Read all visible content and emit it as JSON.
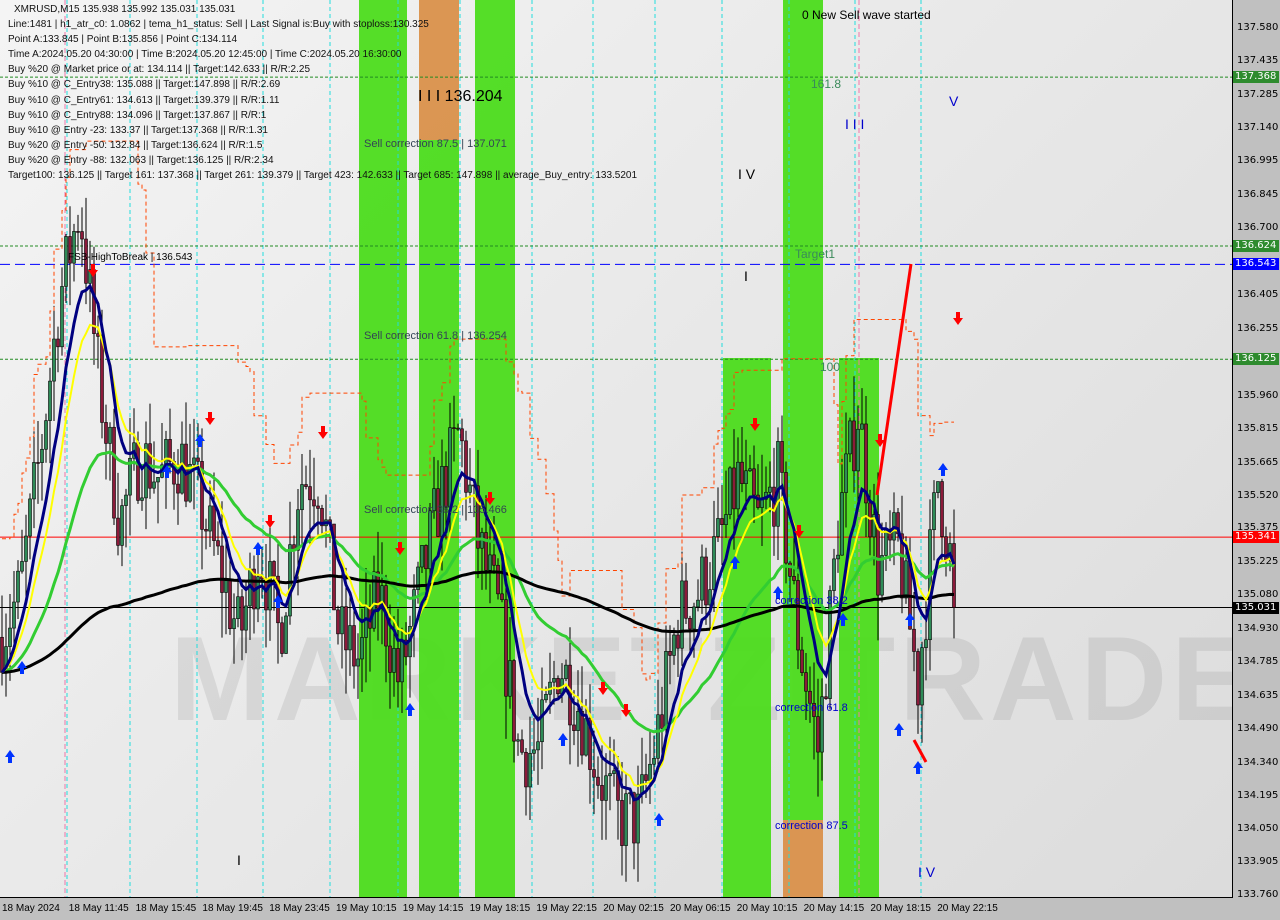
{
  "header": {
    "symbol_line": "XMRUSD,M15  135.938 135.992 135.031 135.031",
    "lines": [
      "Line:1481 | h1_atr_c0: 1.0862 | tema_h1_status: Sell | Last Signal is:Buy with stoploss:130.325",
      "Point A:133.845 | Point B:135.856 | Point C:134.114",
      "Time A:2024.05.20 04:30:00 | Time B:2024.05.20 12:45:00 | Time C:2024.05.20 16:30:00",
      "Buy %20 @ Market price or at: 134.114 || Target:142.633 || R/R:2.25",
      "Buy %10 @ C_Entry38: 135.088 || Target:147.898 || R/R:2.69",
      "Buy %10 @ C_Entry61: 134.613 || Target:139.379 || R/R:1.11",
      "Buy %10 @ C_Entry88: 134.096 || Target:137.867 || R/R:1",
      "Buy %10 @ Entry -23: 133.37 || Target:137.368 || R/R:1.31",
      "Buy %20 @ Entry -50: 132.84 || Target:136.624 || R/R:1.5",
      "Buy %20 @ Entry -88: 132.063 || Target:136.125 || R/R:2.34",
      "Target100: 136.125 || Target 161: 137.368 || Target 261: 139.379 || Target 423: 142.633 || Target 685: 147.898 || average_Buy_entry: 133.5201"
    ]
  },
  "annotations": {
    "new_sell": "0 New Sell wave started",
    "fib161": "161.8",
    "wave3_top": "I I I",
    "wave4": "I V",
    "wave5": "V",
    "wave1": "I",
    "wave3_price": "I I I 136.204",
    "sell_corr_875": "Sell correction 87.5 | 137.071",
    "sell_corr_618": "Sell correction 61.8 | 136.254",
    "sell_corr_382": "Sell correction 38.2 | 135.466",
    "fsb": "FSB-HighToBreak | 136.543",
    "target1": "Target1",
    "fib100": "100",
    "corr382": "correction 38.2",
    "corr618": "correction 61.8",
    "corr875": "correction 87.5",
    "wave_i_low": "I",
    "wave_iv_low": "I V",
    "watermark": "MARKETZITRADE"
  },
  "colors": {
    "up": "#2e8b57",
    "down": "#8b1a3a",
    "ma_fast": "#000080",
    "ma_yellow": "#ffff00",
    "ma_green": "#32cd32",
    "ma_slow": "#000000",
    "zone_green": "#4cdc1c",
    "zone_orange": "#d9904a",
    "envelope": "#ff4500"
  },
  "chart_data": {
    "type": "candlestick",
    "ylim": [
      133.76,
      137.58
    ],
    "y_ticks": [
      "137.580",
      "137.435",
      "137.285",
      "137.140",
      "136.995",
      "136.845",
      "136.700",
      "136.405",
      "136.255",
      "135.960",
      "135.815",
      "135.665",
      "135.520",
      "135.375",
      "135.225",
      "135.080",
      "134.930",
      "134.785",
      "134.635",
      "134.490",
      "134.340",
      "134.195",
      "134.050",
      "133.905",
      "133.760"
    ],
    "x_ticks": [
      "18 May 2024",
      "18 May 11:45",
      "18 May 15:45",
      "18 May 19:45",
      "18 May 23:45",
      "19 May 10:15",
      "19 May 14:15",
      "19 May 18:15",
      "19 May 22:15",
      "20 May 02:15",
      "20 May 06:15",
      "20 May 10:15",
      "20 May 14:15",
      "20 May 18:15",
      "20 May 22:15"
    ],
    "close_path": [
      134.9,
      135.1,
      135.7,
      136.4,
      136.8,
      136.0,
      135.4,
      135.7,
      135.6,
      135.7,
      135.5,
      135.2,
      134.9,
      135.3,
      134.9,
      135.6,
      135.6,
      134.9,
      134.8,
      135.1,
      134.7,
      135.1,
      135.5,
      135.8,
      135.3,
      135.0,
      134.4,
      134.4,
      134.8,
      134.6,
      134.3,
      134.1,
      134.1,
      134.5,
      135.0,
      135.1,
      135.3,
      135.6,
      135.4,
      135.6,
      134.9,
      134.4,
      135.4,
      135.9,
      135.2,
      135.3,
      134.7,
      135.6,
      135.031
    ],
    "levels": [
      {
        "price": 137.368,
        "label": "137.368",
        "color": "#228b22",
        "style": "dotted"
      },
      {
        "price": 136.624,
        "label": "136.624",
        "color": "#228b22",
        "style": "dotted"
      },
      {
        "price": 136.543,
        "label": "136.543",
        "color": "#0000ff",
        "style": "dashed"
      },
      {
        "price": 136.125,
        "label": "136.125",
        "color": "#228b22",
        "style": "dotted"
      },
      {
        "price": 135.341,
        "label": "135.341",
        "color": "#ff0000",
        "style": "solid"
      },
      {
        "price": 135.031,
        "label": "135.031",
        "color": "#000000",
        "style": "solid"
      }
    ]
  }
}
